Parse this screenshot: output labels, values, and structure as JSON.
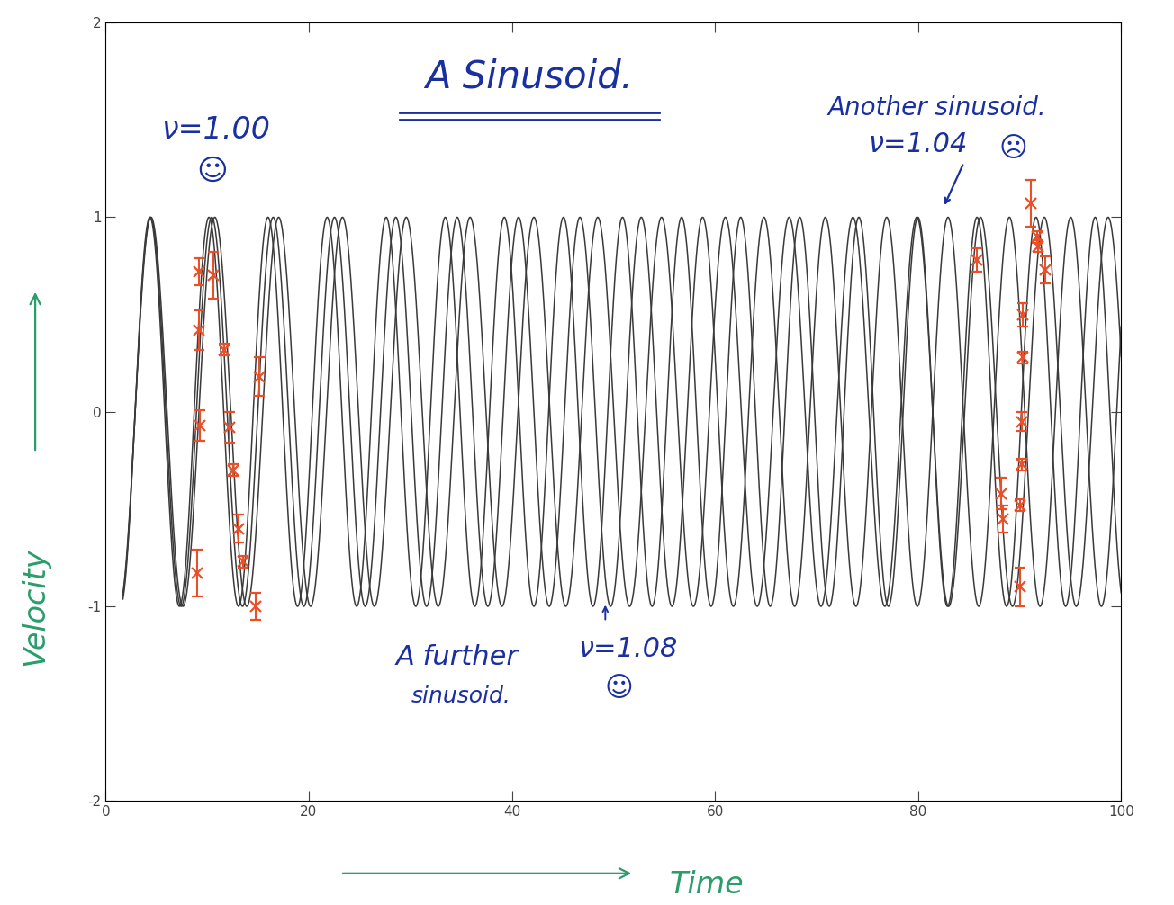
{
  "chart_data": {
    "type": "line",
    "title": "A Sinusoid.",
    "x_label": "Time",
    "y_label": "Velocity",
    "xlim": [
      0,
      100
    ],
    "ylim": [
      -2,
      2
    ],
    "xticks": [
      0,
      20,
      40,
      60,
      80,
      100
    ],
    "yticks": [
      -2,
      -1,
      0,
      1,
      2
    ],
    "series": [
      {
        "type": "line",
        "color": "#3a3a3a",
        "line_style": "solid",
        "frequency": 1.0,
        "amplitude": 1,
        "t0": 2.9,
        "t_range": [
          1.7,
          100
        ]
      },
      {
        "type": "line",
        "color": "#3a3a3a",
        "line_style": "solid",
        "frequency": 1.04,
        "amplitude": 1,
        "t0": 2.9,
        "t_range": [
          1.7,
          100
        ]
      },
      {
        "type": "line",
        "color": "#3a3a3a",
        "line_style": "solid",
        "frequency": 1.08,
        "amplitude": 1,
        "t0": 2.9,
        "t_range": [
          1.7,
          100
        ]
      }
    ],
    "measurements": {
      "type": "scatter",
      "color": "#e8502a",
      "marker": "x",
      "x": [
        9.2,
        9.2,
        9.3,
        9.0,
        10.6,
        11.7,
        12.2,
        12.6,
        13.1,
        13.5,
        14.8,
        15.1,
        85.8,
        88.2,
        88.4,
        90.0,
        90.3,
        90.3,
        90.2,
        90.2,
        90.0,
        91.1,
        91.7,
        91.8,
        92.5
      ],
      "values": [
        0.72,
        0.42,
        -0.07,
        -0.83,
        0.7,
        0.32,
        -0.08,
        -0.3,
        -0.6,
        -0.77,
        -1.0,
        0.18,
        0.78,
        -0.42,
        -0.55,
        -0.9,
        0.5,
        0.28,
        -0.05,
        -0.27,
        -0.48,
        1.07,
        0.9,
        0.85,
        0.73
      ],
      "errors": [
        0.07,
        0.1,
        0.08,
        0.12,
        0.12,
        0.03,
        0.08,
        0.03,
        0.07,
        0.03,
        0.07,
        0.1,
        0.06,
        0.08,
        0.07,
        0.1,
        0.06,
        0.03,
        0.05,
        0.03,
        0.03,
        0.12,
        0.03,
        0.03,
        0.07
      ]
    },
    "annotations": [
      {
        "text": "ν=1.00"
      },
      {
        "text": "☺"
      },
      {
        "text": "Another sinusoid."
      },
      {
        "text": "ν=1.04"
      },
      {
        "text": "☹"
      },
      {
        "text": "A further"
      },
      {
        "text": "sinusoid."
      },
      {
        "text": "ν=1.08"
      },
      {
        "text": "☺"
      }
    ]
  }
}
